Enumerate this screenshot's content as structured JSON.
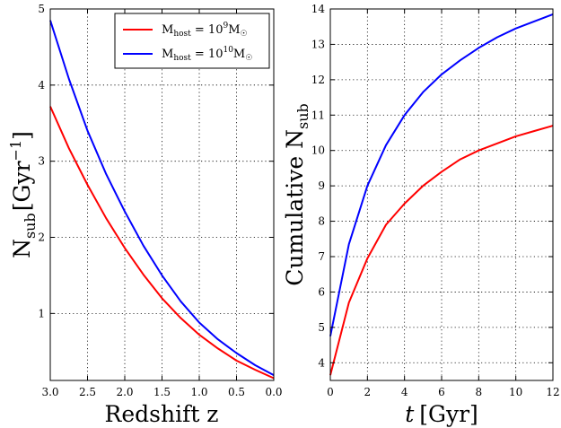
{
  "chart_data": [
    {
      "type": "line",
      "xlabel": "Redshift z",
      "ylabel": "N_sub [Gyr^-1]",
      "xlim": [
        3.0,
        0.0
      ],
      "ylim": [
        0.12,
        5.0
      ],
      "x_inverted": true,
      "grid": true,
      "legend_position": "top-right",
      "x_ticks": [
        "3.0",
        "2.5",
        "2.0",
        "1.5",
        "1.0",
        "0.5",
        "0.0"
      ],
      "y_ticks": [
        "1",
        "2",
        "3",
        "4",
        "5"
      ],
      "x_tick_values": [
        3.0,
        2.5,
        2.0,
        1.5,
        1.0,
        0.5,
        0.0
      ],
      "y_tick_values": [
        1,
        2,
        3,
        4,
        5
      ],
      "series": [
        {
          "name": "M_host = 10^9 M_sun",
          "color": "#ff0000",
          "x": [
            3.0,
            2.75,
            2.5,
            2.25,
            2.0,
            1.75,
            1.5,
            1.25,
            1.0,
            0.75,
            0.5,
            0.25,
            0.0
          ],
          "y": [
            3.72,
            3.17,
            2.69,
            2.25,
            1.86,
            1.51,
            1.2,
            0.94,
            0.72,
            0.54,
            0.38,
            0.26,
            0.15
          ]
        },
        {
          "name": "M_host = 10^10 M_sun",
          "color": "#0000ff",
          "x": [
            3.0,
            2.75,
            2.5,
            2.25,
            2.0,
            1.75,
            1.5,
            1.25,
            1.0,
            0.75,
            0.5,
            0.25,
            0.0
          ],
          "y": [
            4.85,
            4.08,
            3.4,
            2.83,
            2.34,
            1.89,
            1.5,
            1.16,
            0.88,
            0.66,
            0.48,
            0.32,
            0.19
          ]
        }
      ],
      "legend": [
        {
          "base": "M",
          "sub": "host",
          "eq": " = 10",
          "exp": "9",
          "unit": "M",
          "sym": "☉"
        },
        {
          "base": "M",
          "sub": "host",
          "eq": " = 10",
          "exp": "10",
          "unit": "M",
          "sym": "☉"
        }
      ],
      "ylabel_parts": {
        "base": "N",
        "sub": "sub",
        "unit_open": "[Gyr",
        "exp": "−1",
        "unit_close": "]"
      }
    },
    {
      "type": "line",
      "xlabel": "t [Gyr]",
      "ylabel": "Cumulative N_sub",
      "xlim": [
        0,
        12
      ],
      "ylim": [
        3.5,
        14
      ],
      "grid": true,
      "x_ticks": [
        "0",
        "2",
        "4",
        "6",
        "8",
        "10",
        "12"
      ],
      "y_ticks": [
        "4",
        "5",
        "6",
        "7",
        "8",
        "9",
        "10",
        "11",
        "12",
        "13",
        "14"
      ],
      "x_tick_values": [
        0,
        2,
        4,
        6,
        8,
        10,
        12
      ],
      "y_tick_values": [
        4,
        5,
        6,
        7,
        8,
        9,
        10,
        11,
        12,
        13,
        14
      ],
      "series": [
        {
          "color": "#ff0000",
          "x": [
            0,
            1,
            2,
            3,
            4,
            5,
            6,
            7,
            8,
            9,
            10,
            11,
            12
          ],
          "y": [
            3.65,
            5.7,
            6.95,
            7.9,
            8.5,
            9.0,
            9.4,
            9.75,
            10.0,
            10.2,
            10.4,
            10.55,
            10.7
          ]
        },
        {
          "color": "#0000ff",
          "x": [
            0,
            1,
            2,
            3,
            4,
            5,
            6,
            7,
            8,
            9,
            10,
            11,
            12
          ],
          "y": [
            4.75,
            7.35,
            9.0,
            10.15,
            11.0,
            11.65,
            12.15,
            12.55,
            12.9,
            13.2,
            13.45,
            13.65,
            13.85
          ]
        }
      ],
      "xlabel_parts": {
        "var": "t",
        "unit": "[Gyr]"
      },
      "ylabel_parts": {
        "text": "Cumulative N",
        "sub": "sub"
      }
    }
  ]
}
